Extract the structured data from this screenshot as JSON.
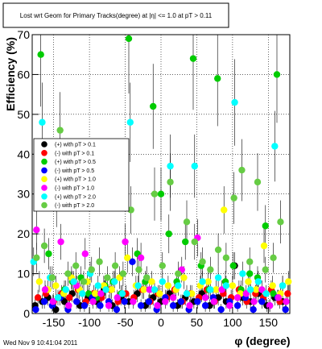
{
  "chart_data": {
    "type": "scatter",
    "title": "Lost wrt Geom for Primary Tracks(degree) at |η| <= 1.0 at pT > 0.11",
    "xlabel": "φ (degree)",
    "ylabel": "Efficiency (%)",
    "xlim": [
      -180,
      180
    ],
    "ylim": [
      0,
      70
    ],
    "x_ticks": [
      -150,
      -100,
      -50,
      0,
      50,
      100,
      150
    ],
    "y_ticks": [
      0,
      10,
      20,
      30,
      40,
      50,
      60,
      70
    ],
    "grid": "dotted",
    "legend_placement": "middle-left",
    "footer": "Wed Nov  9 10:41:04 2011",
    "series": [
      {
        "name": "(+) with pT > 0.1",
        "color": "#000000",
        "points": [
          [
            -176,
            2
          ],
          [
            -166,
            3
          ],
          [
            -158,
            4
          ],
          [
            -147,
            1
          ],
          [
            -135,
            3
          ],
          [
            -124,
            5
          ],
          [
            -113,
            2
          ],
          [
            -102,
            4
          ],
          [
            -90,
            3
          ],
          [
            -79,
            6
          ],
          [
            -68,
            2
          ],
          [
            -56,
            4
          ],
          [
            -45,
            3
          ],
          [
            -33,
            5
          ],
          [
            -22,
            2
          ],
          [
            -11,
            4
          ],
          [
            0,
            3
          ],
          [
            12,
            5
          ],
          [
            23,
            2
          ],
          [
            34,
            4
          ],
          [
            46,
            3
          ],
          [
            57,
            5
          ],
          [
            68,
            2
          ],
          [
            80,
            4
          ],
          [
            91,
            3
          ],
          [
            103,
            12
          ],
          [
            114,
            4
          ],
          [
            125,
            3
          ],
          [
            136,
            5
          ],
          [
            148,
            2
          ],
          [
            159,
            4
          ],
          [
            170,
            3
          ]
        ]
      },
      {
        "name": "(-) with pT > 0.1",
        "color": "#ff0000",
        "points": [
          [
            -172,
            4
          ],
          [
            -161,
            5
          ],
          [
            -150,
            3
          ],
          [
            -139,
            5
          ],
          [
            -128,
            4
          ],
          [
            -116,
            6
          ],
          [
            -105,
            3
          ],
          [
            -94,
            5
          ],
          [
            -83,
            4
          ],
          [
            -71,
            6
          ],
          [
            -60,
            3
          ],
          [
            -49,
            5
          ],
          [
            -38,
            4
          ],
          [
            -26,
            6
          ],
          [
            -15,
            3
          ],
          [
            -4,
            5
          ],
          [
            8,
            4
          ],
          [
            19,
            6
          ],
          [
            30,
            3
          ],
          [
            41,
            5
          ],
          [
            53,
            4
          ],
          [
            64,
            6
          ],
          [
            75,
            3
          ],
          [
            87,
            5
          ],
          [
            98,
            4
          ],
          [
            109,
            6
          ],
          [
            120,
            3
          ],
          [
            132,
            5
          ],
          [
            143,
            4
          ],
          [
            154,
            6
          ],
          [
            166,
            3
          ],
          [
            177,
            5
          ]
        ]
      },
      {
        "name": "(+) with pT > 0.5",
        "color": "#00cc00",
        "points": [
          [
            -168,
            65
          ],
          [
            -157,
            15
          ],
          [
            -146,
            28
          ],
          [
            -135,
            6
          ],
          [
            -124,
            8
          ],
          [
            -112,
            9
          ],
          [
            -101,
            5
          ],
          [
            -90,
            4
          ],
          [
            -78,
            7
          ],
          [
            -67,
            8
          ],
          [
            -56,
            5
          ],
          [
            -45,
            69
          ],
          [
            -33,
            15
          ],
          [
            -22,
            8
          ],
          [
            -11,
            52
          ],
          [
            0,
            30
          ],
          [
            11,
            20
          ],
          [
            22,
            8
          ],
          [
            34,
            18
          ],
          [
            45,
            64
          ],
          [
            56,
            12
          ],
          [
            67,
            6
          ],
          [
            79,
            59
          ],
          [
            90,
            8
          ],
          [
            101,
            12
          ],
          [
            112,
            6
          ],
          [
            124,
            10
          ],
          [
            135,
            9
          ],
          [
            146,
            22
          ],
          [
            157,
            5
          ],
          [
            162,
            60
          ],
          [
            170,
            7
          ]
        ]
      },
      {
        "name": "(-) with pT > 0.5",
        "color": "#0000ff",
        "points": [
          [
            -175,
            1
          ],
          [
            -163,
            3
          ],
          [
            -152,
            2
          ],
          [
            -141,
            4
          ],
          [
            -130,
            1
          ],
          [
            -118,
            3
          ],
          [
            -107,
            2
          ],
          [
            -96,
            4
          ],
          [
            -85,
            2
          ],
          [
            -73,
            3
          ],
          [
            -62,
            1
          ],
          [
            -51,
            3
          ],
          [
            -40,
            13
          ],
          [
            -28,
            2
          ],
          [
            -17,
            3
          ],
          [
            -6,
            1
          ],
          [
            6,
            4
          ],
          [
            17,
            2
          ],
          [
            28,
            3
          ],
          [
            39,
            1
          ],
          [
            51,
            3
          ],
          [
            62,
            2
          ],
          [
            73,
            4
          ],
          [
            84,
            1
          ],
          [
            96,
            3
          ],
          [
            107,
            2
          ],
          [
            118,
            4
          ],
          [
            129,
            1
          ],
          [
            141,
            3
          ],
          [
            152,
            2
          ],
          [
            163,
            4
          ],
          [
            174,
            1
          ]
        ]
      },
      {
        "name": "(+) with pT > 1.0",
        "color": "#ffff00",
        "points": [
          [
            -170,
            8
          ],
          [
            -158,
            6
          ],
          [
            -147,
            7
          ],
          [
            -136,
            5
          ],
          [
            -125,
            9
          ],
          [
            -114,
            6
          ],
          [
            -103,
            8
          ],
          [
            -92,
            5
          ],
          [
            -80,
            7
          ],
          [
            -69,
            6
          ],
          [
            -58,
            9
          ],
          [
            -47,
            14
          ],
          [
            -35,
            7
          ],
          [
            -24,
            6
          ],
          [
            -13,
            8
          ],
          [
            -2,
            5
          ],
          [
            10,
            7
          ],
          [
            21,
            6
          ],
          [
            32,
            9
          ],
          [
            43,
            5
          ],
          [
            55,
            7
          ],
          [
            66,
            8
          ],
          [
            77,
            6
          ],
          [
            88,
            26
          ],
          [
            100,
            7
          ],
          [
            111,
            5
          ],
          [
            122,
            8
          ],
          [
            133,
            6
          ],
          [
            144,
            17
          ],
          [
            156,
            7
          ],
          [
            167,
            5
          ],
          [
            178,
            8
          ]
        ]
      },
      {
        "name": "(-) with pT > 1.0",
        "color": "#ff00ff",
        "points": [
          [
            -174,
            21
          ],
          [
            -162,
            6
          ],
          [
            -151,
            3
          ],
          [
            -140,
            18
          ],
          [
            -129,
            2
          ],
          [
            -118,
            7
          ],
          [
            -106,
            15
          ],
          [
            -95,
            3
          ],
          [
            -84,
            5
          ],
          [
            -73,
            2
          ],
          [
            -61,
            4
          ],
          [
            -50,
            18
          ],
          [
            -39,
            3
          ],
          [
            -28,
            14
          ],
          [
            -16,
            6
          ],
          [
            -5,
            2
          ],
          [
            6,
            3
          ],
          [
            17,
            4
          ],
          [
            29,
            11
          ],
          [
            40,
            2
          ],
          [
            51,
            19
          ],
          [
            62,
            4
          ],
          [
            74,
            3
          ],
          [
            85,
            6
          ],
          [
            96,
            2
          ],
          [
            107,
            4
          ],
          [
            119,
            5
          ],
          [
            130,
            3
          ],
          [
            141,
            6
          ],
          [
            152,
            2
          ],
          [
            164,
            4
          ],
          [
            175,
            3
          ]
        ]
      },
      {
        "name": "(+) with pT > 2.0",
        "color": "#00ffff",
        "points": [
          [
            -178,
            13
          ],
          [
            -166,
            48
          ],
          [
            -155,
            9
          ],
          [
            -144,
            4
          ],
          [
            -133,
            6
          ],
          [
            -122,
            8
          ],
          [
            -110,
            5
          ],
          [
            -99,
            10
          ],
          [
            -88,
            7
          ],
          [
            -77,
            6
          ],
          [
            -65,
            8
          ],
          [
            -54,
            5
          ],
          [
            -43,
            48
          ],
          [
            -32,
            7
          ],
          [
            -20,
            9
          ],
          [
            -9,
            6
          ],
          [
            2,
            8
          ],
          [
            13,
            37
          ],
          [
            24,
            7
          ],
          [
            36,
            5
          ],
          [
            47,
            37
          ],
          [
            58,
            8
          ],
          [
            69,
            6
          ],
          [
            80,
            9
          ],
          [
            91,
            7
          ],
          [
            103,
            53
          ],
          [
            114,
            10
          ],
          [
            125,
            6
          ],
          [
            136,
            8
          ],
          [
            147,
            5
          ],
          [
            159,
            42
          ],
          [
            170,
            7
          ]
        ]
      },
      {
        "name": "(-) with pT > 2.0",
        "color": "#66cc44",
        "points": [
          [
            -174,
            14
          ],
          [
            -163,
            17
          ],
          [
            -152,
            9
          ],
          [
            -141,
            46
          ],
          [
            -130,
            10
          ],
          [
            -119,
            12
          ],
          [
            -108,
            8
          ],
          [
            -97,
            11
          ],
          [
            -86,
            13
          ],
          [
            -75,
            9
          ],
          [
            -64,
            12
          ],
          [
            -53,
            10
          ],
          [
            -42,
            26
          ],
          [
            -31,
            11
          ],
          [
            -20,
            9
          ],
          [
            -9,
            30
          ],
          [
            2,
            12
          ],
          [
            13,
            33
          ],
          [
            24,
            10
          ],
          [
            36,
            23
          ],
          [
            47,
            18
          ],
          [
            58,
            13
          ],
          [
            69,
            11
          ],
          [
            80,
            16
          ],
          [
            91,
            14
          ],
          [
            102,
            29
          ],
          [
            113,
            36
          ],
          [
            124,
            13
          ],
          [
            135,
            33
          ],
          [
            146,
            11
          ],
          [
            157,
            14
          ],
          [
            167,
            23
          ]
        ]
      }
    ]
  }
}
